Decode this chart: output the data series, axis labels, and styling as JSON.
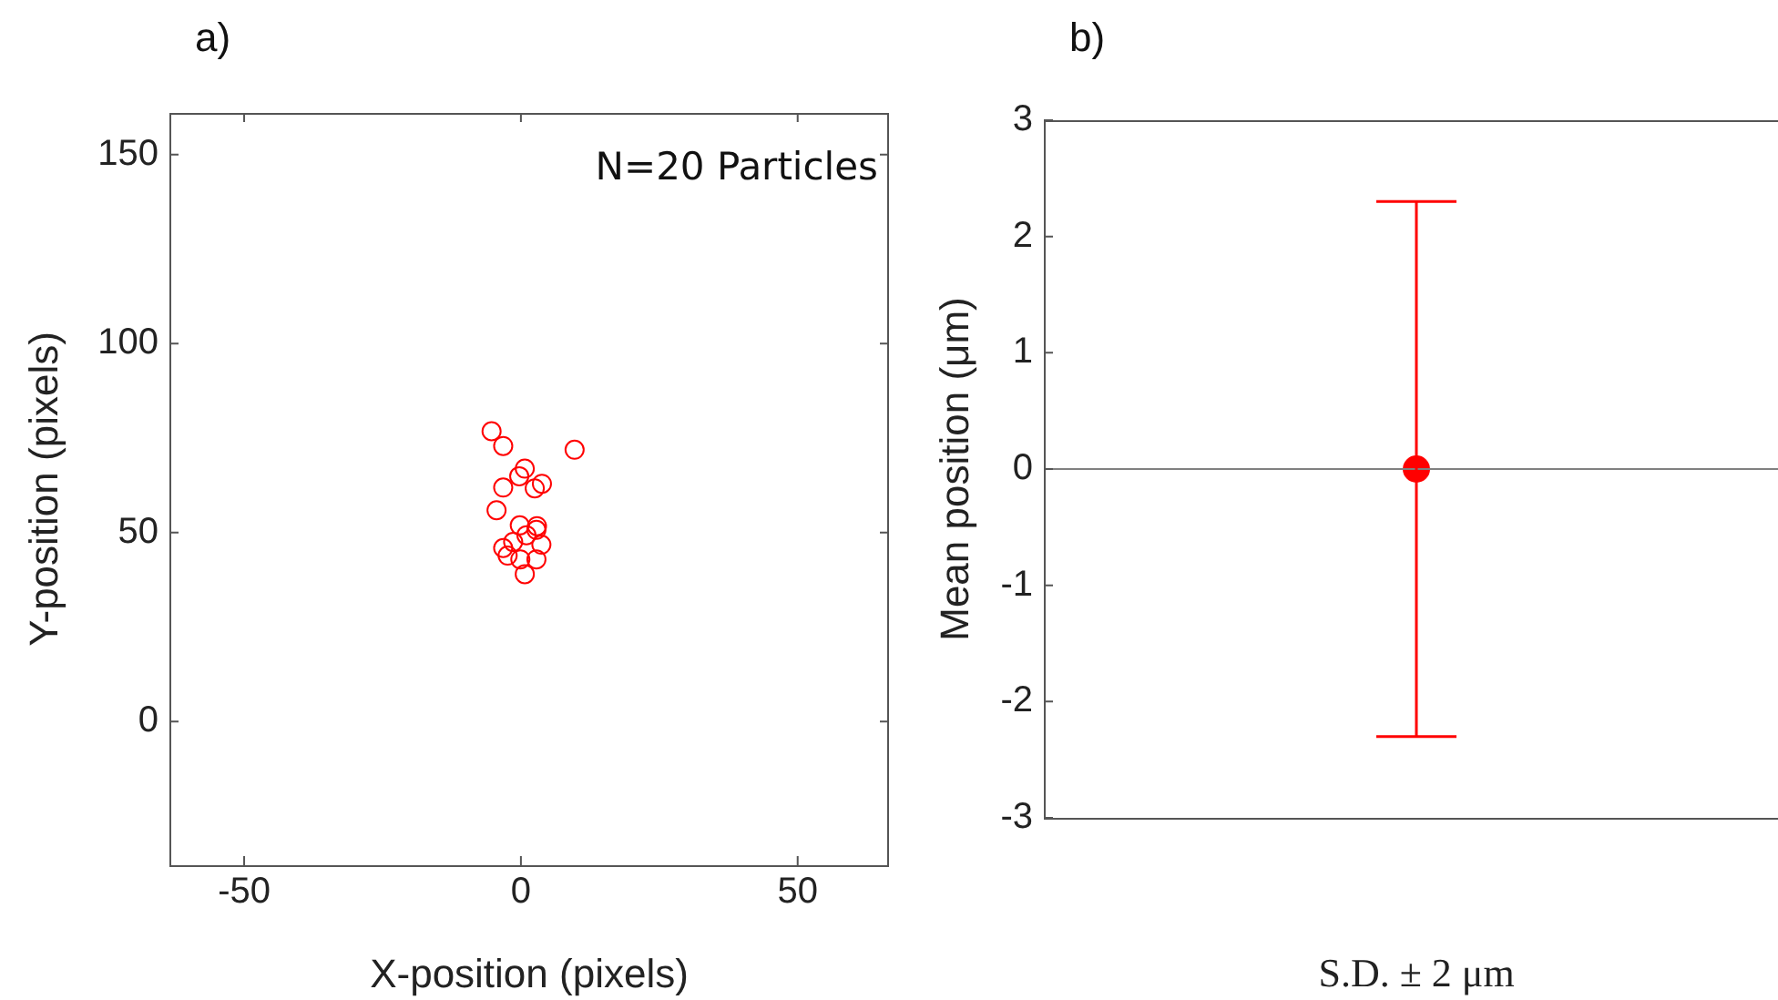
{
  "chart_data": [
    {
      "type": "scatter",
      "title": "a)",
      "xlabel": "X-position (pixels)",
      "ylabel": "Y-position (pixels)",
      "annotations": [
        "N=20 Particles"
      ],
      "x": [
        -5.3,
        -3.2,
        9.7,
        0.7,
        -0.3,
        -3.2,
        2.5,
        3.8,
        -4.4,
        -0.2,
        2.9,
        2.8,
        1.0,
        -1.4,
        -3.2,
        -2.4,
        -0.1,
        2.8,
        3.7,
        0.7
      ],
      "values": [
        76.8,
        72.9,
        71.9,
        66.9,
        64.9,
        61.9,
        61.7,
        62.9,
        55.9,
        51.9,
        51.7,
        50.7,
        49.3,
        47.5,
        45.9,
        43.9,
        42.9,
        42.9,
        46.8,
        39.0
      ],
      "color": "#ff0000",
      "marker": "circle",
      "xlim": [
        -63.5,
        66.5
      ],
      "xticks": [
        -50,
        0,
        50
      ],
      "ylim": [
        -38,
        161
      ],
      "yticks": [
        0,
        50,
        100,
        150
      ],
      "grid": false,
      "legend": false
    },
    {
      "type": "scatter",
      "title": "b)",
      "xlabel": "S.D. ± 2 μm",
      "ylabel": "Mean position (μm)",
      "categories": [
        null
      ],
      "values": [
        0
      ],
      "errors": [
        2.3
      ],
      "color": "#ff0000",
      "marker": "circle",
      "ylim": [
        -3,
        3
      ],
      "yticks": [
        -3,
        -2,
        -1,
        0,
        1,
        2,
        3
      ],
      "grid": false,
      "legend": false,
      "ref_lines": [
        {
          "axis": "y",
          "value": 0,
          "label": null,
          "color": "#808080"
        }
      ]
    }
  ]
}
